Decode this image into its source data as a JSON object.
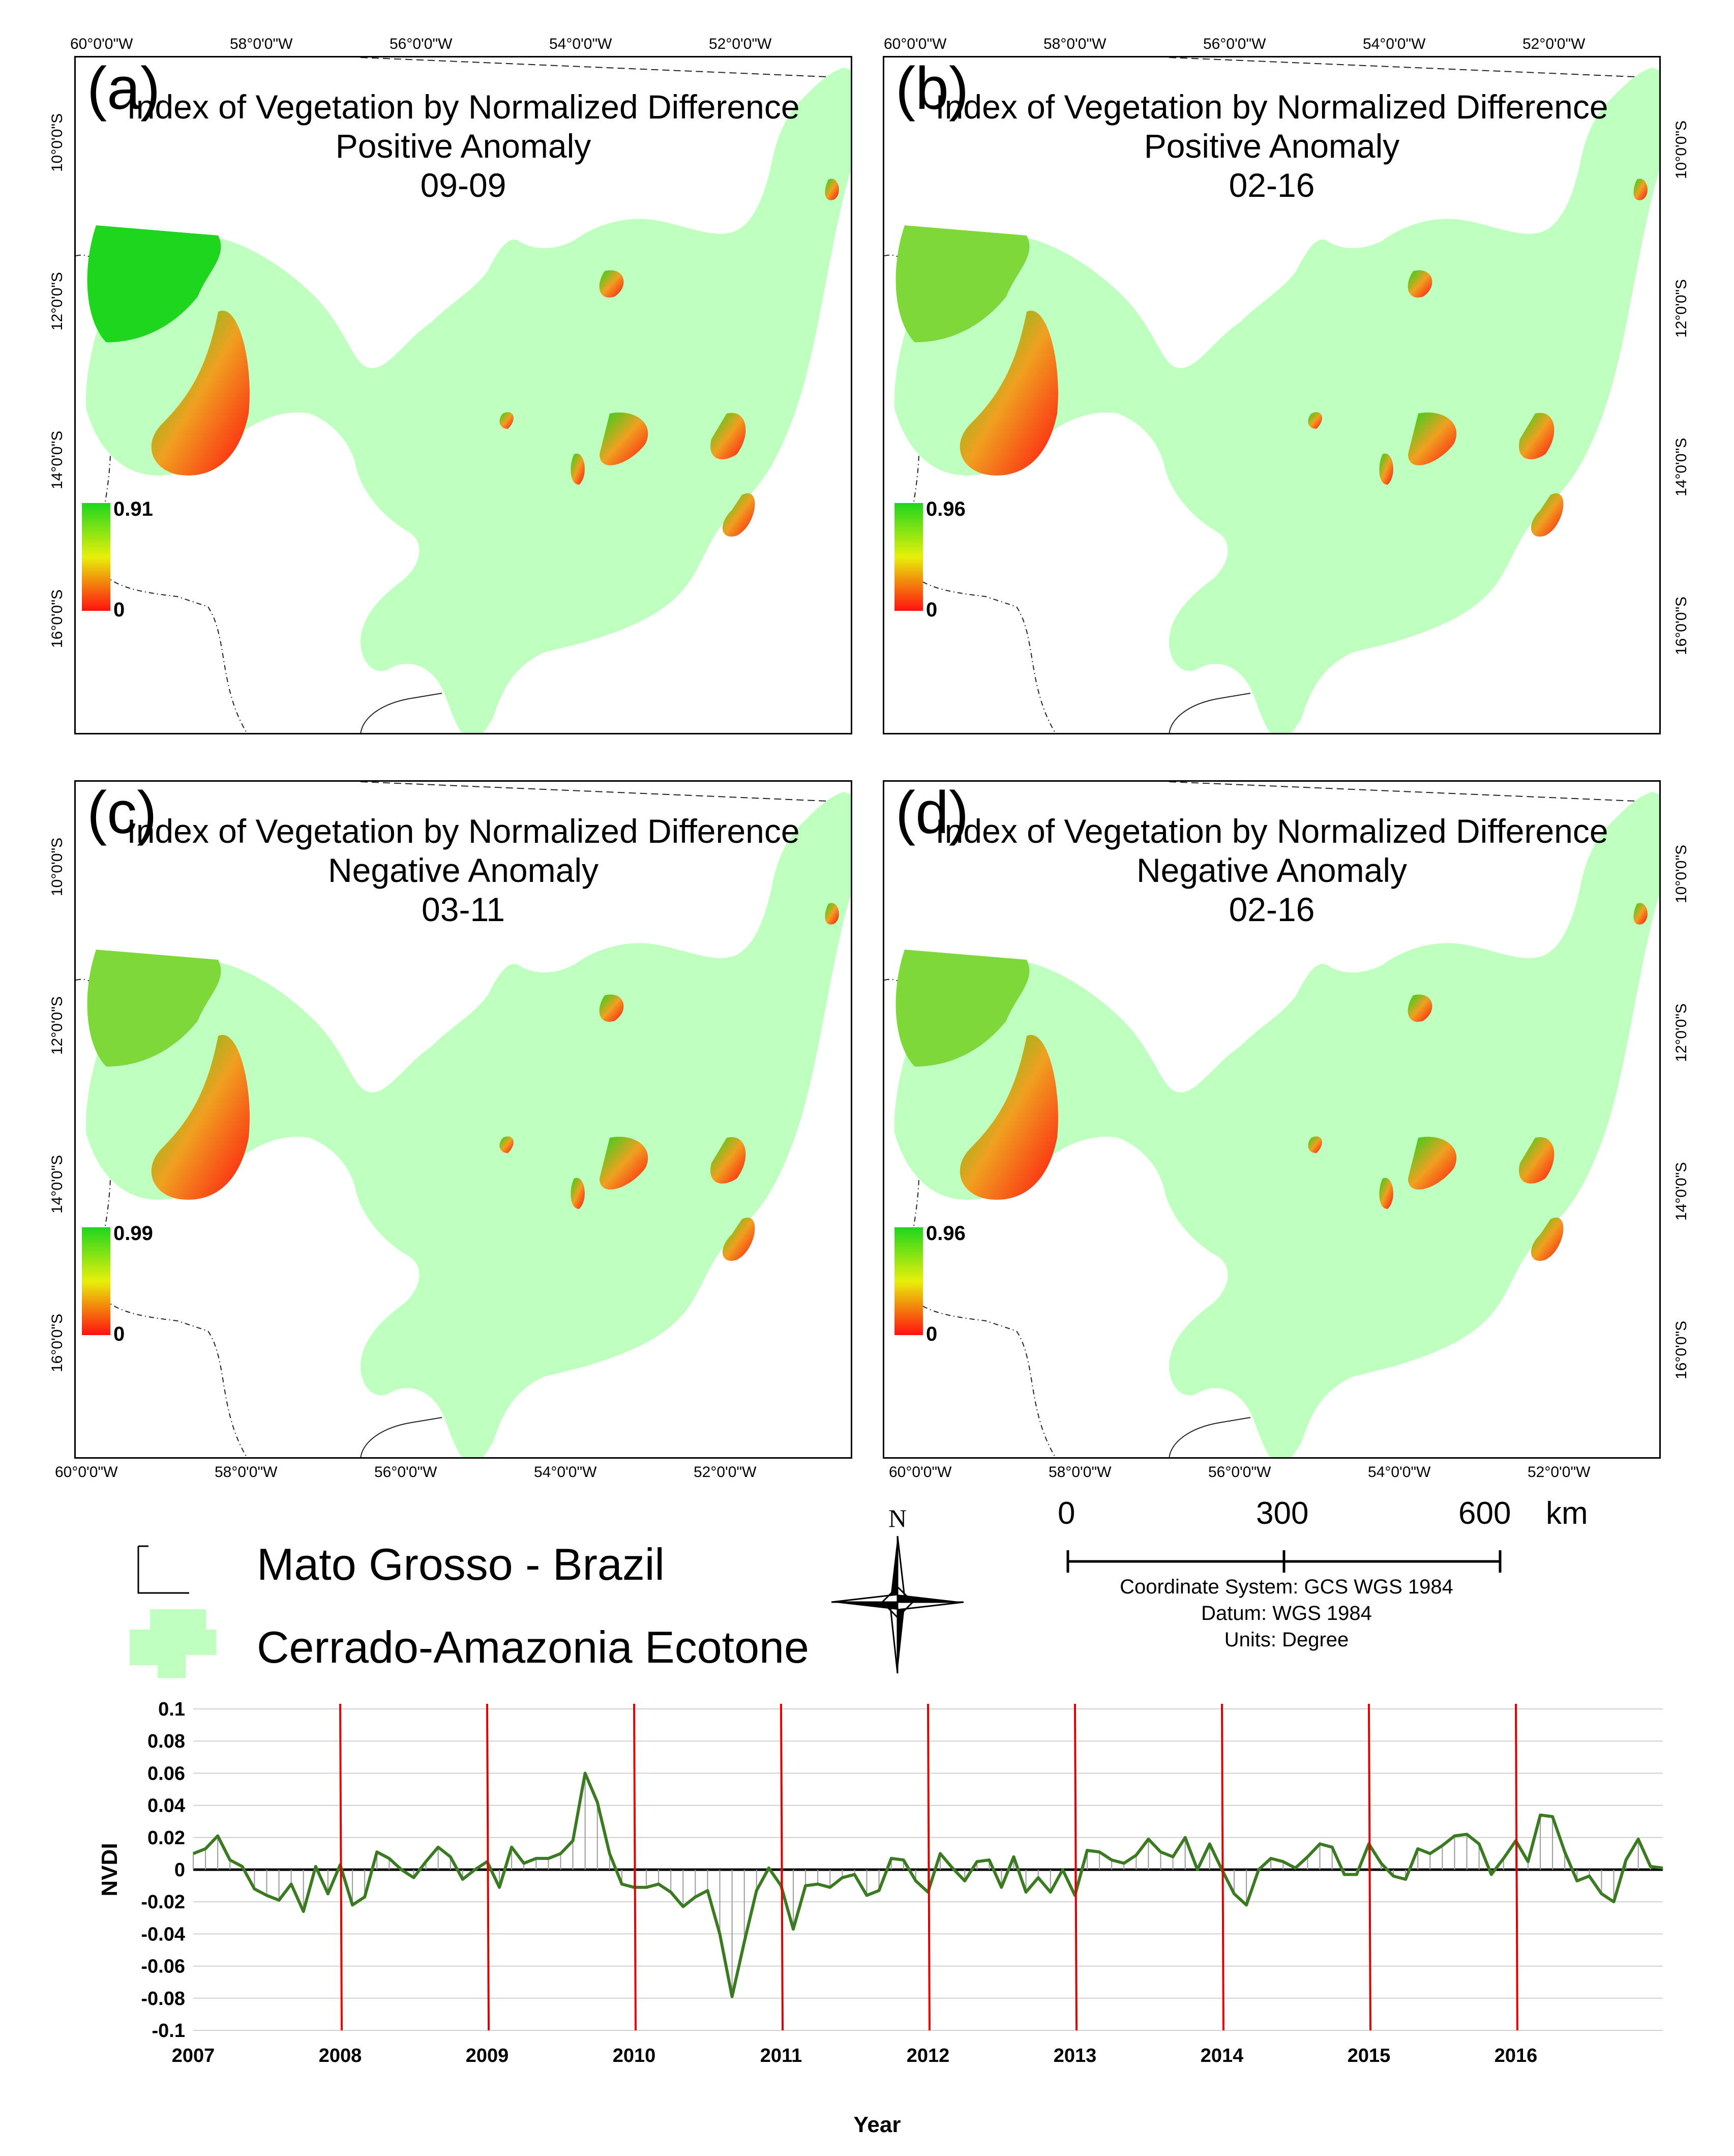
{
  "panels": [
    {
      "letter": "(a)",
      "title_line1": "Index of Vegetation by Normalized Difference",
      "title_line2": "Positive Anomaly",
      "title_line3": "09-09",
      "legend_max": "0.91",
      "legend_min": "0"
    },
    {
      "letter": "(b)",
      "title_line1": "Index of Vegetation by Normalized Difference",
      "title_line2": "Positive Anomaly",
      "title_line3": "02-16",
      "legend_max": "0.96",
      "legend_min": "0"
    },
    {
      "letter": "(c)",
      "title_line1": "Index of Vegetation by Normalized Difference",
      "title_line2": "Negative Anomaly",
      "title_line3": "03-11",
      "legend_max": "0.99",
      "legend_min": "0"
    },
    {
      "letter": "(d)",
      "title_line1": "Index of Vegetation by Normalized Difference",
      "title_line2": "Negative Anomaly",
      "title_line3": "02-16",
      "legend_max": "0.96",
      "legend_min": "0"
    }
  ],
  "longitude_ticks": [
    "60°0'0\"W",
    "58°0'0\"W",
    "56°0'0\"W",
    "54°0'0\"W",
    "52°0'0\"W"
  ],
  "latitude_ticks": [
    "10°0'0\"S",
    "12°0'0\"S",
    "14°0'0\"S",
    "16°0'0\"S"
  ],
  "legend": {
    "boundary_label": "Mato Grosso - Brazil",
    "ecotone_label": "Cerrado-Amazonia Ecotone",
    "ecotone_color": "#bfffbf"
  },
  "north_arrow": {
    "label": "N"
  },
  "scale_bar": {
    "label_0": "0",
    "label_300": "300",
    "label_600": "600",
    "unit": "km"
  },
  "map_info": {
    "coordinate_system": "Coordinate System: GCS WGS 1984",
    "datum": "Datum: WGS 1984",
    "units": "Units: Degree"
  },
  "colors": {
    "series": "#3a7a20",
    "event_lines": "#e00000",
    "stems": "#9a9a9a",
    "grid": "#d0d0d0",
    "ramp_high": "#1ed61e",
    "ramp_mid": "#e8f00a",
    "ramp_low": "#ff1010"
  },
  "chart_data": {
    "type": "line",
    "title": "",
    "xlabel": "Year",
    "ylabel": "NVDI",
    "ylim": [
      -0.1,
      0.1
    ],
    "xlim": [
      2007,
      2017
    ],
    "yticks": [
      "0.1",
      "0.08",
      "0.06",
      "0.04",
      "0.02",
      "0",
      "-0.02",
      "-0.04",
      "-0.06",
      "-0.08",
      "-0.1"
    ],
    "ytick_values": [
      0.1,
      0.08,
      0.06,
      0.04,
      0.02,
      0,
      -0.02,
      -0.04,
      -0.06,
      -0.08,
      -0.1
    ],
    "xtick_labels": [
      "2007",
      "2008",
      "2009",
      "2010",
      "2011",
      "2012",
      "2013",
      "2014",
      "2015",
      "2016"
    ],
    "xtick_values": [
      2007,
      2008,
      2009,
      2010,
      2011,
      2012,
      2013,
      2014,
      2015,
      2016
    ],
    "event_lines": [
      2008,
      2009,
      2010,
      2011,
      2012,
      2013,
      2014,
      2015,
      2016
    ],
    "grid": "horizontal",
    "x_start": 2007,
    "x_step": 0.08333,
    "series": [
      {
        "name": "NVDI anomaly",
        "values": [
          0.01,
          0.013,
          0.021,
          0.006,
          0.002,
          -0.012,
          -0.016,
          -0.019,
          -0.009,
          -0.026,
          0.002,
          -0.015,
          0.003,
          -0.022,
          -0.017,
          0.011,
          0.007,
          0,
          -0.005,
          0.005,
          0.014,
          0.008,
          -0.006,
          0,
          0.005,
          -0.011,
          0.014,
          0.004,
          0.007,
          0.007,
          0.01,
          0.018,
          0.06,
          0.042,
          0.01,
          -0.009,
          -0.011,
          -0.011,
          -0.009,
          -0.014,
          -0.023,
          -0.017,
          -0.013,
          -0.04,
          -0.079,
          -0.045,
          -0.013,
          0.001,
          -0.01,
          -0.037,
          -0.01,
          -0.009,
          -0.011,
          -0.005,
          -0.003,
          -0.016,
          -0.013,
          0.007,
          0.006,
          -0.007,
          -0.014,
          0.01,
          0.001,
          -0.007,
          0.005,
          0.006,
          -0.011,
          0.008,
          -0.014,
          -0.005,
          -0.014,
          0,
          -0.016,
          0.012,
          0.011,
          0.006,
          0.004,
          0.009,
          0.019,
          0.011,
          0.008,
          0.02,
          0,
          0.016,
          0,
          -0.015,
          -0.022,
          0,
          0.007,
          0.005,
          0.001,
          0.008,
          0.016,
          0.014,
          -0.003,
          -0.003,
          0.016,
          0.004,
          -0.004,
          -0.006,
          0.013,
          0.01,
          0.015,
          0.021,
          0.022,
          0.016,
          -0.003,
          0.007,
          0.018,
          0.005,
          0.034,
          0.033,
          0.011,
          -0.007,
          -0.004,
          -0.015,
          -0.02,
          0.006,
          0.019,
          0.002,
          0.001
        ]
      }
    ]
  }
}
